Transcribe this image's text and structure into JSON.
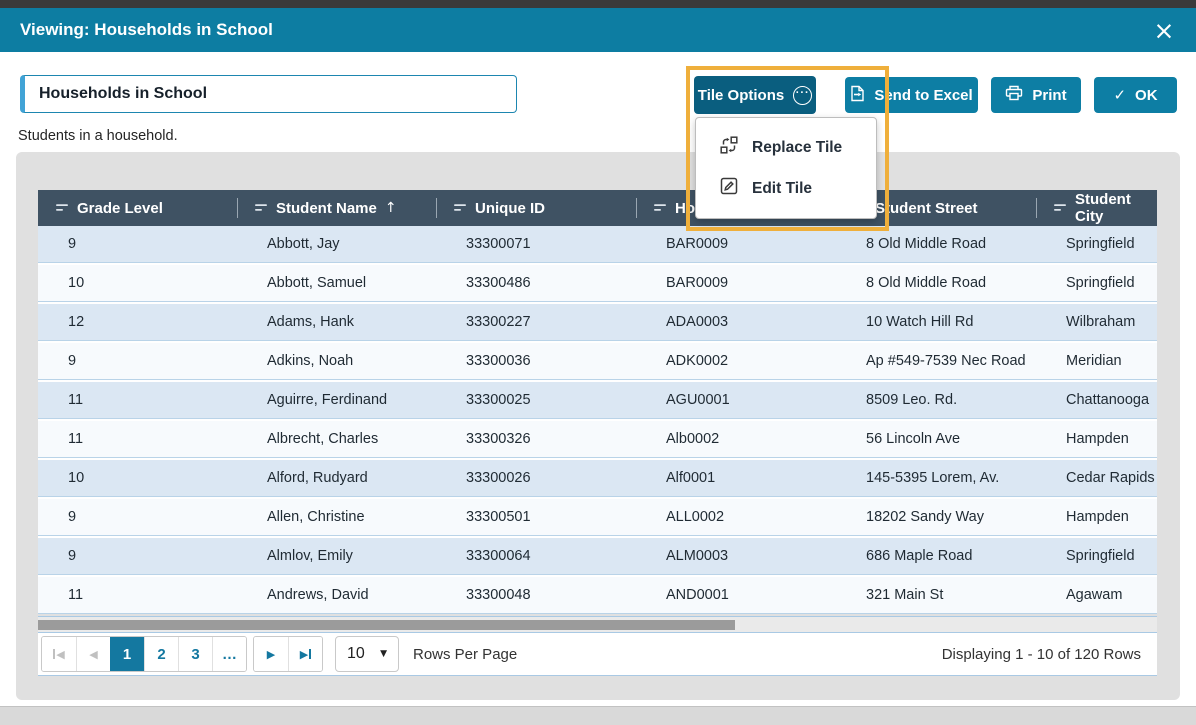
{
  "dialog": {
    "title": "Viewing: Households in School",
    "close_icon": "×"
  },
  "tile": {
    "name_value": "Households in School",
    "description": "Students in a household."
  },
  "toolbar": {
    "tile_options": "Tile Options",
    "send_to_excel": "Send to Excel",
    "print": "Print",
    "ok": "OK"
  },
  "tile_options_menu": {
    "items": [
      {
        "icon": "replace-tile-icon",
        "label": "Replace Tile"
      },
      {
        "icon": "edit-tile-icon",
        "label": "Edit Tile"
      }
    ]
  },
  "table": {
    "columns": [
      {
        "label": "Grade Level"
      },
      {
        "label": "Student Name",
        "sort": "↑"
      },
      {
        "label": "Unique ID"
      },
      {
        "label": "Household ID"
      },
      {
        "label": "Student Street"
      },
      {
        "label": "Student City"
      }
    ],
    "rows": [
      [
        "9",
        "Abbott, Jay",
        "33300071",
        "BAR0009",
        "8 Old Middle Road",
        "Springfield"
      ],
      [
        "10",
        "Abbott, Samuel",
        "33300486",
        "BAR0009",
        "8 Old Middle Road",
        "Springfield"
      ],
      [
        "12",
        "Adams, Hank",
        "33300227",
        "ADA0003",
        "10 Watch Hill Rd",
        "Wilbraham"
      ],
      [
        "9",
        "Adkins, Noah",
        "33300036",
        "ADK0002",
        "Ap #549-7539 Nec Road",
        "Meridian"
      ],
      [
        "11",
        "Aguirre, Ferdinand",
        "33300025",
        "AGU0001",
        "8509 Leo. Rd.",
        "Chattanooga"
      ],
      [
        "11",
        "Albrecht, Charles",
        "33300326",
        "Alb0002",
        "56 Lincoln Ave",
        "Hampden"
      ],
      [
        "10",
        "Alford, Rudyard",
        "33300026",
        "Alf0001",
        "145-5395 Lorem, Av.",
        "Cedar Rapids"
      ],
      [
        "9",
        "Allen, Christine",
        "33300501",
        "ALL0002",
        "18202 Sandy Way",
        "Hampden"
      ],
      [
        "9",
        "Almlov, Emily",
        "33300064",
        "ALM0003",
        "686 Maple Road",
        "Springfield"
      ],
      [
        "11",
        "Andrews, David",
        "33300048",
        "AND0001",
        "321 Main St",
        "Agawam"
      ]
    ]
  },
  "pagination": {
    "pages": [
      "1",
      "2",
      "3",
      "…"
    ],
    "active_page": "1",
    "rows_per_page_value": "10",
    "rows_per_page_label": "Rows Per Page",
    "status": "Displaying 1 - 10 of 120 Rows"
  },
  "colors": {
    "accent_teal": "#0d7ea4",
    "dark_teal": "#0a5e7f",
    "titlebar_teal": "#0d7da2",
    "table_header_slate": "#3f5263",
    "row_blue": "#dbe7f3",
    "row_white": "#f7fafd",
    "active_page_teal": "#1478a0",
    "highlight_orange": "#efaf3b"
  }
}
